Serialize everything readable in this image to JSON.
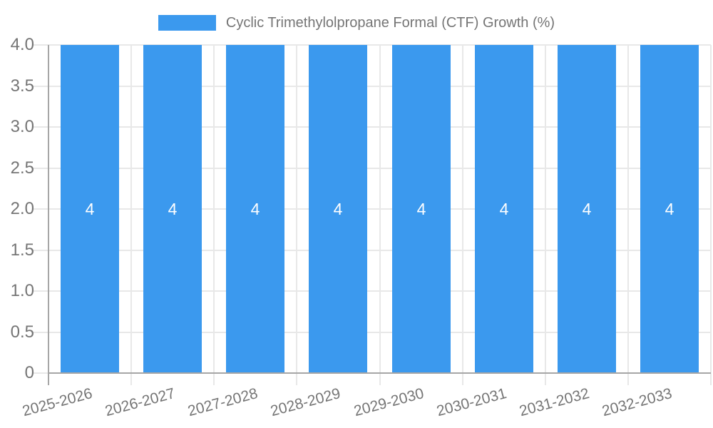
{
  "chart_data": {
    "type": "bar",
    "title": "Cyclic Trimethylolpropane Formal (CTF) Growth (%)",
    "legend_label": "Cyclic Trimethylolpropane Formal (CTF) Growth (%)",
    "legend_position": "top",
    "categories": [
      "2025-2026",
      "2026-2027",
      "2027-2028",
      "2028-2029",
      "2029-2030",
      "2030-2031",
      "2031-2032",
      "2032-2033"
    ],
    "series": [
      {
        "name": "Cyclic Trimethylolpropane Formal (CTF) Growth (%)",
        "values": [
          4,
          4,
          4,
          4,
          4,
          4,
          4,
          4
        ]
      }
    ],
    "bar_value_labels": [
      "4",
      "4",
      "4",
      "4",
      "4",
      "4",
      "4",
      "4"
    ],
    "xlabel": "",
    "ylabel": "",
    "ylim": [
      0,
      4
    ],
    "y_tick_step": 0.5,
    "y_tick_labels_top_to_bottom": [
      "4.0",
      "3.5",
      "3.0",
      "2.5",
      "2.0",
      "1.5",
      "1.0",
      "0.5",
      "0"
    ],
    "grid": true,
    "colors": {
      "bar": "#3b99ee",
      "grid": "#e8e8e8",
      "axis": "#a6a6a6",
      "text": "#757575",
      "value_label": "#ffffff",
      "background": "#ffffff"
    }
  }
}
